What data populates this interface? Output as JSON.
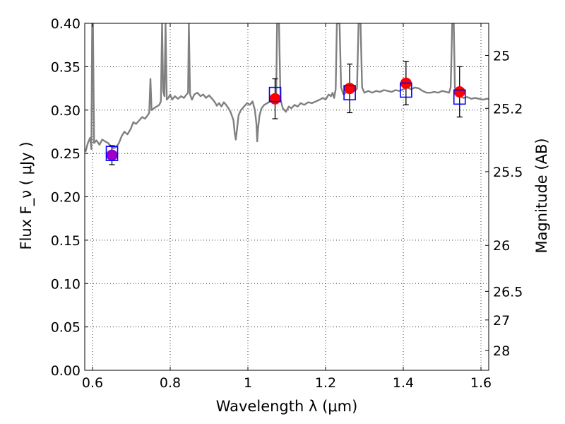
{
  "chart_data": {
    "type": "scatter",
    "xlabel": "Wavelength  λ (μm)",
    "ylabel": "Flux  F_ν  ( μJy )",
    "ylabel_right": "Magnitude (AB)",
    "xlim": [
      0.58,
      1.62
    ],
    "ylim": [
      0.0,
      0.4
    ],
    "grid": true,
    "x_ticks": [
      {
        "value": 0.6,
        "label": "0.6"
      },
      {
        "value": 0.8,
        "label": "0.8"
      },
      {
        "value": 1.0,
        "label": "1"
      },
      {
        "value": 1.2,
        "label": "1.2"
      },
      {
        "value": 1.4,
        "label": "1.4"
      },
      {
        "value": 1.6,
        "label": "1.6"
      }
    ],
    "y_ticks": [
      {
        "value": 0.0,
        "label": "0.00"
      },
      {
        "value": 0.05,
        "label": "0.05"
      },
      {
        "value": 0.1,
        "label": "0.10"
      },
      {
        "value": 0.15,
        "label": "0.15"
      },
      {
        "value": 0.2,
        "label": "0.20"
      },
      {
        "value": 0.25,
        "label": "0.25"
      },
      {
        "value": 0.3,
        "label": "0.30"
      },
      {
        "value": 0.35,
        "label": "0.35"
      },
      {
        "value": 0.4,
        "label": "0.40"
      }
    ],
    "right_ticks": [
      {
        "flux": 0.363,
        "label": "25"
      },
      {
        "flux": 0.302,
        "label": "25.2"
      },
      {
        "flux": 0.229,
        "label": "25.5"
      },
      {
        "flux": 0.144,
        "label": "26"
      },
      {
        "flux": 0.091,
        "label": "26.5"
      },
      {
        "flux": 0.058,
        "label": "27"
      },
      {
        "flux": 0.023,
        "label": "28"
      }
    ],
    "model_spectrum": {
      "color": "#808080",
      "points": [
        [
          0.582,
          0.252
        ],
        [
          0.588,
          0.262
        ],
        [
          0.594,
          0.268
        ],
        [
          0.597,
          0.255
        ],
        [
          0.599,
          0.4
        ],
        [
          0.601,
          0.4
        ],
        [
          0.604,
          0.262
        ],
        [
          0.61,
          0.265
        ],
        [
          0.618,
          0.26
        ],
        [
          0.625,
          0.266
        ],
        [
          0.632,
          0.264
        ],
        [
          0.64,
          0.262
        ],
        [
          0.648,
          0.258
        ],
        [
          0.655,
          0.256
        ],
        [
          0.662,
          0.258
        ],
        [
          0.668,
          0.262
        ],
        [
          0.675,
          0.27
        ],
        [
          0.682,
          0.275
        ],
        [
          0.69,
          0.272
        ],
        [
          0.698,
          0.278
        ],
        [
          0.705,
          0.286
        ],
        [
          0.712,
          0.284
        ],
        [
          0.72,
          0.288
        ],
        [
          0.728,
          0.292
        ],
        [
          0.735,
          0.29
        ],
        [
          0.742,
          0.294
        ],
        [
          0.746,
          0.297
        ],
        [
          0.749,
          0.336
        ],
        [
          0.752,
          0.3
        ],
        [
          0.758,
          0.302
        ],
        [
          0.765,
          0.304
        ],
        [
          0.772,
          0.306
        ],
        [
          0.776,
          0.31
        ],
        [
          0.779,
          0.4
        ],
        [
          0.782,
          0.322
        ],
        [
          0.785,
          0.316
        ],
        [
          0.788,
          0.4
        ],
        [
          0.791,
          0.312
        ],
        [
          0.795,
          0.314
        ],
        [
          0.8,
          0.318
        ],
        [
          0.805,
          0.312
        ],
        [
          0.812,
          0.316
        ],
        [
          0.82,
          0.313
        ],
        [
          0.828,
          0.316
        ],
        [
          0.835,
          0.314
        ],
        [
          0.842,
          0.318
        ],
        [
          0.846,
          0.32
        ],
        [
          0.848,
          0.4
        ],
        [
          0.851,
          0.318
        ],
        [
          0.856,
          0.312
        ],
        [
          0.862,
          0.318
        ],
        [
          0.87,
          0.32
        ],
        [
          0.878,
          0.316
        ],
        [
          0.885,
          0.318
        ],
        [
          0.892,
          0.314
        ],
        [
          0.9,
          0.317
        ],
        [
          0.908,
          0.313
        ],
        [
          0.915,
          0.309
        ],
        [
          0.92,
          0.305
        ],
        [
          0.926,
          0.308
        ],
        [
          0.932,
          0.304
        ],
        [
          0.938,
          0.309
        ],
        [
          0.944,
          0.306
        ],
        [
          0.95,
          0.302
        ],
        [
          0.955,
          0.298
        ],
        [
          0.96,
          0.292
        ],
        [
          0.963,
          0.288
        ],
        [
          0.966,
          0.274
        ],
        [
          0.969,
          0.266
        ],
        [
          0.972,
          0.278
        ],
        [
          0.976,
          0.294
        ],
        [
          0.982,
          0.3
        ],
        [
          0.99,
          0.304
        ],
        [
          0.998,
          0.308
        ],
        [
          1.005,
          0.306
        ],
        [
          1.012,
          0.31
        ],
        [
          1.018,
          0.3
        ],
        [
          1.022,
          0.284
        ],
        [
          1.024,
          0.264
        ],
        [
          1.026,
          0.278
        ],
        [
          1.03,
          0.294
        ],
        [
          1.035,
          0.302
        ],
        [
          1.042,
          0.306
        ],
        [
          1.05,
          0.308
        ],
        [
          1.058,
          0.31
        ],
        [
          1.064,
          0.312
        ],
        [
          1.07,
          0.314
        ],
        [
          1.073,
          0.32
        ],
        [
          1.075,
          0.4
        ],
        [
          1.08,
          0.4
        ],
        [
          1.084,
          0.312
        ],
        [
          1.09,
          0.302
        ],
        [
          1.098,
          0.298
        ],
        [
          1.105,
          0.304
        ],
        [
          1.112,
          0.302
        ],
        [
          1.12,
          0.306
        ],
        [
          1.128,
          0.304
        ],
        [
          1.136,
          0.308
        ],
        [
          1.145,
          0.306
        ],
        [
          1.155,
          0.309
        ],
        [
          1.165,
          0.308
        ],
        [
          1.175,
          0.31
        ],
        [
          1.185,
          0.312
        ],
        [
          1.193,
          0.314
        ],
        [
          1.2,
          0.312
        ],
        [
          1.208,
          0.318
        ],
        [
          1.214,
          0.316
        ],
        [
          1.218,
          0.32
        ],
        [
          1.222,
          0.314
        ],
        [
          1.226,
          0.324
        ],
        [
          1.229,
          0.4
        ],
        [
          1.236,
          0.4
        ],
        [
          1.24,
          0.326
        ],
        [
          1.246,
          0.318
        ],
        [
          1.252,
          0.32
        ],
        [
          1.258,
          0.322
        ],
        [
          1.264,
          0.32
        ],
        [
          1.27,
          0.324
        ],
        [
          1.276,
          0.322
        ],
        [
          1.281,
          0.325
        ],
        [
          1.285,
          0.4
        ],
        [
          1.29,
          0.4
        ],
        [
          1.294,
          0.326
        ],
        [
          1.3,
          0.32
        ],
        [
          1.31,
          0.322
        ],
        [
          1.32,
          0.32
        ],
        [
          1.33,
          0.322
        ],
        [
          1.34,
          0.321
        ],
        [
          1.35,
          0.323
        ],
        [
          1.36,
          0.322
        ],
        [
          1.37,
          0.321
        ],
        [
          1.38,
          0.323
        ],
        [
          1.39,
          0.322
        ],
        [
          1.4,
          0.324
        ],
        [
          1.41,
          0.326
        ],
        [
          1.42,
          0.324
        ],
        [
          1.43,
          0.326
        ],
        [
          1.44,
          0.325
        ],
        [
          1.45,
          0.322
        ],
        [
          1.46,
          0.32
        ],
        [
          1.47,
          0.32
        ],
        [
          1.48,
          0.321
        ],
        [
          1.49,
          0.32
        ],
        [
          1.5,
          0.322
        ],
        [
          1.51,
          0.321
        ],
        [
          1.518,
          0.32
        ],
        [
          1.522,
          0.326
        ],
        [
          1.524,
          0.36
        ],
        [
          1.526,
          0.4
        ],
        [
          1.53,
          0.4
        ],
        [
          1.533,
          0.326
        ],
        [
          1.538,
          0.318
        ],
        [
          1.545,
          0.316
        ],
        [
          1.555,
          0.314
        ],
        [
          1.565,
          0.315
        ],
        [
          1.575,
          0.313
        ],
        [
          1.585,
          0.314
        ],
        [
          1.595,
          0.313
        ],
        [
          1.605,
          0.312
        ],
        [
          1.615,
          0.313
        ],
        [
          1.62,
          0.313
        ]
      ]
    },
    "model_band_points": {
      "color": "#0000ff",
      "points": [
        {
          "x": 0.65,
          "y": 0.25
        },
        {
          "x": 1.07,
          "y": 0.318
        },
        {
          "x": 1.262,
          "y": 0.32
        },
        {
          "x": 1.407,
          "y": 0.323
        },
        {
          "x": 1.545,
          "y": 0.315
        }
      ]
    },
    "observed": {
      "points": [
        {
          "x": 0.65,
          "y": 0.248,
          "err": 0.011,
          "color": "#9900cc"
        },
        {
          "x": 1.07,
          "y": 0.313,
          "err": 0.023,
          "color": "#ff0000"
        },
        {
          "x": 1.262,
          "y": 0.325,
          "err": 0.028,
          "color": "#ff0000"
        },
        {
          "x": 1.407,
          "y": 0.331,
          "err": 0.025,
          "color": "#ff0000"
        },
        {
          "x": 1.545,
          "y": 0.321,
          "err": 0.029,
          "color": "#ff0000"
        }
      ]
    }
  }
}
